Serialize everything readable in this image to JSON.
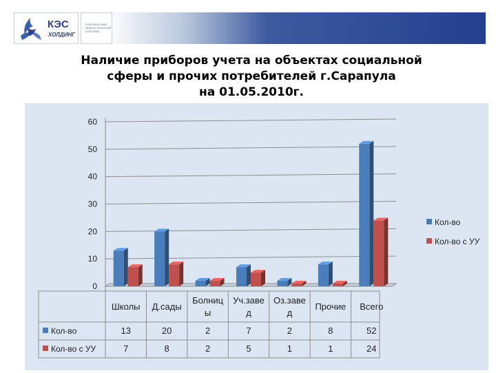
{
  "header": {
    "logo_name": "КЭС",
    "logo_sub": "ХОЛДИНГ",
    "partner_text": "КОМПЛЕКСНЫЕ ЭНЕРГЕТИЧЕСКИЕ СИСТЕМЫ"
  },
  "slide": {
    "title_lines": [
      "Наличие приборов учета на объектах социальной",
      "сферы и прочих потребителей г.Сарапула",
      "на 01.05.2010г."
    ]
  },
  "colors": {
    "series1": "#4a7ebb",
    "series2": "#c0504d",
    "panel": "#dce6f2"
  },
  "chart_data": {
    "type": "bar",
    "categories": [
      [
        "Школы"
      ],
      [
        "Д.сады"
      ],
      [
        "Болниц",
        "ы"
      ],
      [
        "Уч.заве",
        "д"
      ],
      [
        "Оз.заве",
        "д"
      ],
      [
        "Прочие"
      ],
      [
        "Всего"
      ]
    ],
    "series": [
      {
        "name": "Кол-во",
        "values": [
          13,
          20,
          2,
          7,
          2,
          8,
          52
        ]
      },
      {
        "name": "Кол-во с УУ",
        "values": [
          7,
          8,
          2,
          5,
          1,
          1,
          24
        ]
      }
    ],
    "yticks": [
      "0",
      "10",
      "20",
      "30",
      "40",
      "50",
      "60"
    ],
    "ylim": [
      0,
      60
    ],
    "legend_position": "right",
    "data_table": true,
    "grid": true
  }
}
